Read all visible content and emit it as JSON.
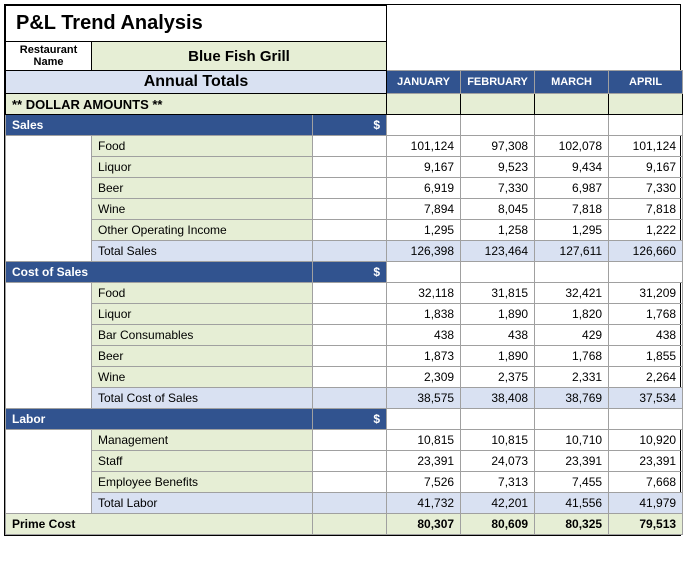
{
  "title": "P&L Trend Analysis",
  "restaurant_label": "Restaurant Name",
  "restaurant_name": "Blue Fish Grill",
  "annual_totals_label": "Annual Totals",
  "months": [
    "JANUARY",
    "FEBRUARY",
    "MARCH",
    "APRIL"
  ],
  "dollar_amounts_label": "** DOLLAR AMOUNTS **",
  "colors": {
    "section_head_bg": "#31538f",
    "section_head_fg": "#ffffff",
    "light_green": "#e6eed5",
    "light_blue": "#d9e1f2",
    "border": "#a0a0a0"
  },
  "sections": [
    {
      "name": "Sales",
      "dollar": "$",
      "lines": [
        {
          "label": "Food",
          "vals": [
            "101,124",
            "97,308",
            "102,078",
            "101,124"
          ]
        },
        {
          "label": "Liquor",
          "vals": [
            "9,167",
            "9,523",
            "9,434",
            "9,167"
          ]
        },
        {
          "label": "Beer",
          "vals": [
            "6,919",
            "7,330",
            "6,987",
            "7,330"
          ]
        },
        {
          "label": "Wine",
          "vals": [
            "7,894",
            "8,045",
            "7,818",
            "7,818"
          ]
        },
        {
          "label": "Other Operating Income",
          "vals": [
            "1,295",
            "1,258",
            "1,295",
            "1,222"
          ]
        }
      ],
      "total_label": "Total Sales",
      "total": [
        "126,398",
        "123,464",
        "127,611",
        "126,660"
      ]
    },
    {
      "name": "Cost of Sales",
      "dollar": "$",
      "lines": [
        {
          "label": "Food",
          "vals": [
            "32,118",
            "31,815",
            "32,421",
            "31,209"
          ]
        },
        {
          "label": "Liquor",
          "vals": [
            "1,838",
            "1,890",
            "1,820",
            "1,768"
          ]
        },
        {
          "label": "Bar Consumables",
          "vals": [
            "438",
            "438",
            "429",
            "438"
          ]
        },
        {
          "label": "Beer",
          "vals": [
            "1,873",
            "1,890",
            "1,768",
            "1,855"
          ]
        },
        {
          "label": "Wine",
          "vals": [
            "2,309",
            "2,375",
            "2,331",
            "2,264"
          ]
        }
      ],
      "total_label": "Total Cost of Sales",
      "total": [
        "38,575",
        "38,408",
        "38,769",
        "37,534"
      ]
    },
    {
      "name": "Labor",
      "dollar": "$",
      "lines": [
        {
          "label": "Management",
          "vals": [
            "10,815",
            "10,815",
            "10,710",
            "10,920"
          ]
        },
        {
          "label": "Staff",
          "vals": [
            "23,391",
            "24,073",
            "23,391",
            "23,391"
          ]
        },
        {
          "label": "Employee Benefits",
          "vals": [
            "7,526",
            "7,313",
            "7,455",
            "7,668"
          ]
        }
      ],
      "total_label": "Total Labor",
      "total": [
        "41,732",
        "42,201",
        "41,556",
        "41,979"
      ]
    }
  ],
  "prime_cost_label": "Prime Cost",
  "prime_cost": [
    "80,307",
    "80,609",
    "80,325",
    "79,513"
  ]
}
